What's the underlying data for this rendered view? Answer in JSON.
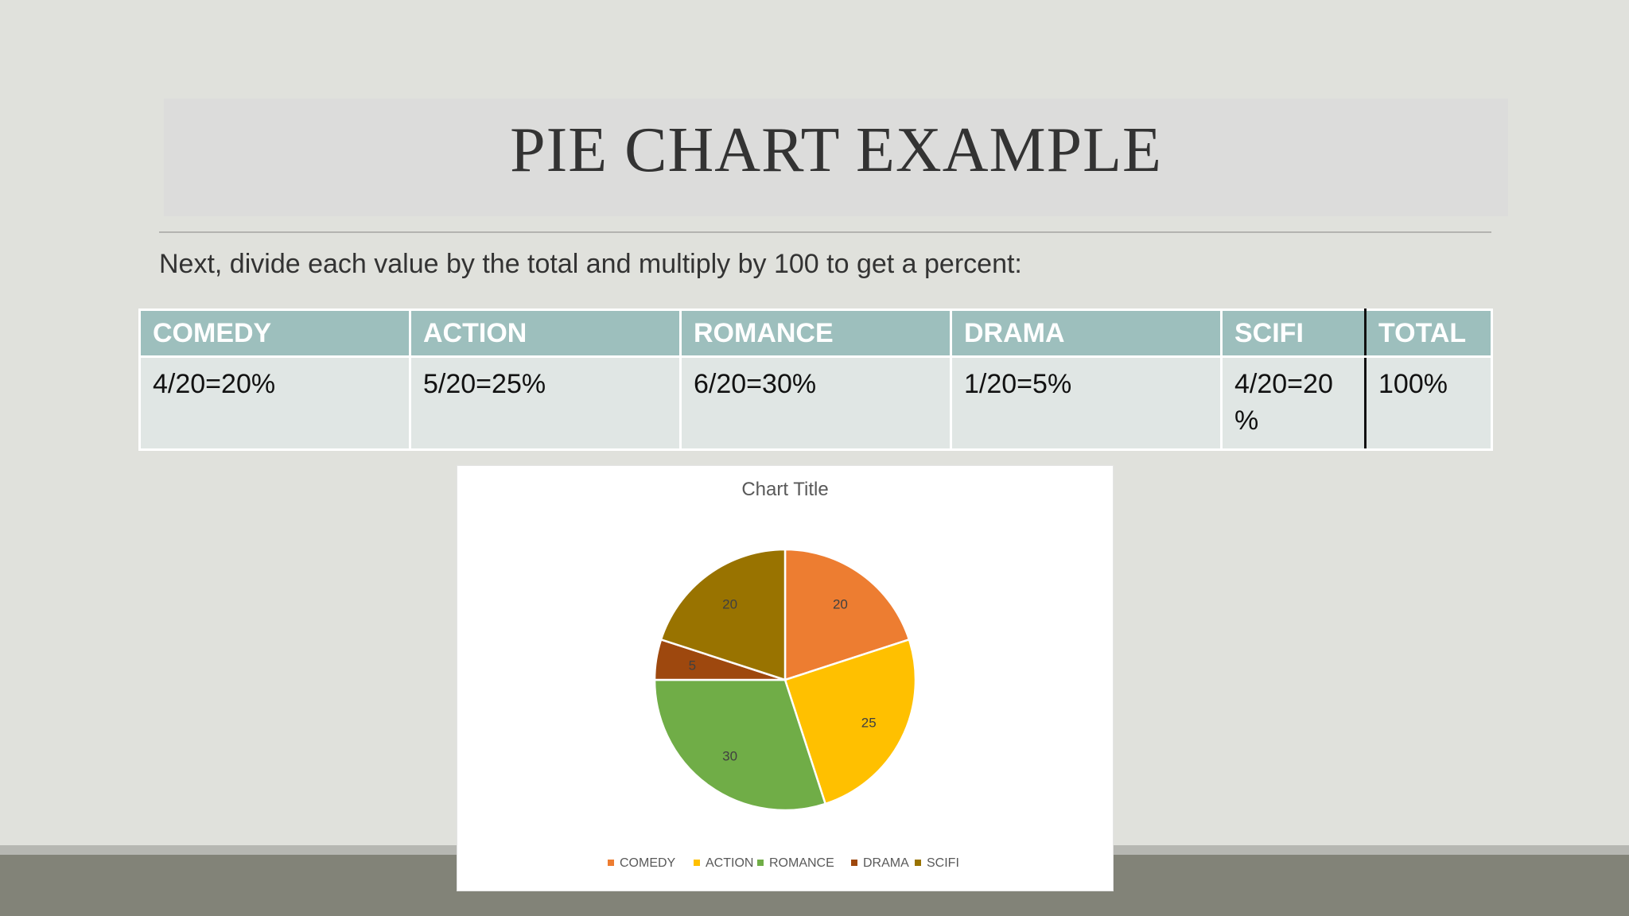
{
  "slide": {
    "title": "PIE CHART EXAMPLE",
    "subtitle": "Next, divide each value by the total and multiply by 100 to get a percent:"
  },
  "table": {
    "headers": [
      "COMEDY",
      "ACTION",
      "ROMANCE",
      "DRAMA",
      "SCIFI",
      "TOTAL"
    ],
    "row": [
      "4/20=20%",
      "5/20=25%",
      "6/20=30%",
      "1/20=5%",
      "4/20=20%",
      "100%"
    ]
  },
  "chart_data": {
    "type": "pie",
    "title": "Chart Title",
    "categories": [
      "COMEDY",
      "ACTION",
      "ROMANCE",
      "DRAMA",
      "SCIFI"
    ],
    "values": [
      20,
      25,
      30,
      5,
      20
    ],
    "colors": [
      "#ed7d31",
      "#ffc000",
      "#70ad47",
      "#9e480e",
      "#997300"
    ],
    "legend": "bottom",
    "data_labels": true
  },
  "colors": {
    "background": "#e0e1dc",
    "header_fill": "#9dbfbd",
    "cell_fill": "#e0e6e4",
    "footer": "#828378"
  }
}
